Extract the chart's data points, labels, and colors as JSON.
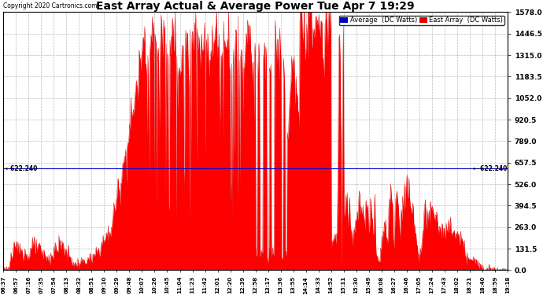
{
  "title": "East Array Actual & Average Power Tue Apr 7 19:29",
  "copyright": "Copyright 2020 Cartronics.com",
  "ylabel_right_values": [
    1578.0,
    1446.5,
    1315.0,
    1183.5,
    1052.0,
    920.5,
    789.0,
    657.5,
    526.0,
    394.5,
    263.0,
    131.5,
    0.0
  ],
  "ymax": 1578.0,
  "ymin": 0.0,
  "average_line_y": 622.24,
  "average_line_label": "622.240",
  "legend_avg_color": "#0000bb",
  "legend_east_color": "#dd0000",
  "legend_avg_text": "Average  (DC Watts)",
  "legend_east_text": "East Array  (DC Watts)",
  "fill_color": "#ff0000",
  "line_color": "#dd0000",
  "background_color": "#ffffff",
  "grid_color": "#bbbbbb",
  "avg_line_color": "#0000cc",
  "time_labels": [
    "06:37",
    "06:57",
    "07:16",
    "07:35",
    "07:54",
    "08:13",
    "08:32",
    "08:51",
    "09:10",
    "09:29",
    "09:48",
    "10:07",
    "10:26",
    "10:45",
    "11:04",
    "11:23",
    "11:42",
    "12:01",
    "12:20",
    "12:39",
    "12:58",
    "13:17",
    "13:36",
    "13:55",
    "14:14",
    "14:33",
    "14:52",
    "15:11",
    "15:30",
    "15:49",
    "16:08",
    "16:27",
    "16:46",
    "17:05",
    "17:24",
    "17:43",
    "18:02",
    "18:21",
    "18:40",
    "18:59",
    "19:18"
  ]
}
